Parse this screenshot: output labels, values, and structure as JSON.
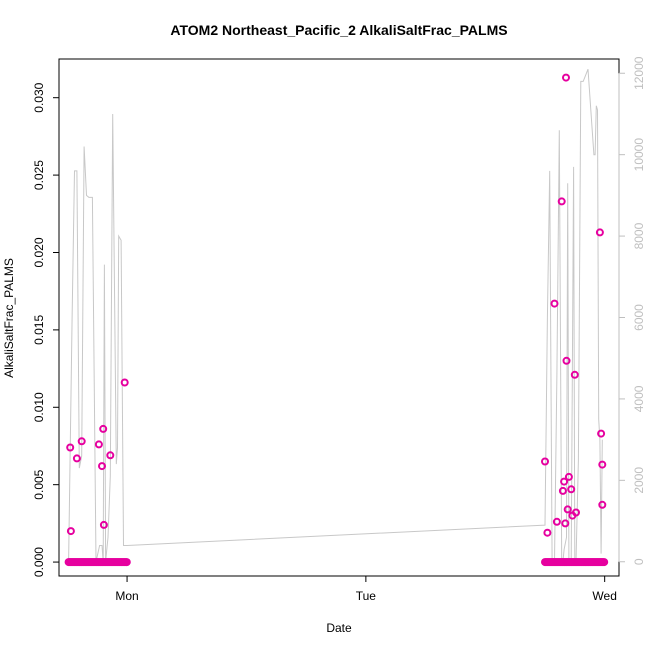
{
  "chart_data": {
    "type": "scatter",
    "title": "ATOM2 Northeast_Pacific_2 AlkaliSaltFrac_PALMS",
    "xlabel": "Date",
    "ylabel": "AlkaliSaltFrac_PALMS",
    "x_ticks": [
      {
        "day": 1,
        "label": "Mon"
      },
      {
        "day": 2,
        "label": "Tue"
      },
      {
        "day": 3,
        "label": "Wed"
      }
    ],
    "xlim_days": [
      0.715,
      3.06
    ],
    "ylim": [
      -0.0009,
      0.0325
    ],
    "y_ticks": [
      "0.000",
      "0.005",
      "0.010",
      "0.015",
      "0.020",
      "0.025",
      "0.030"
    ],
    "y2_ticks": [
      "0",
      "2000",
      "4000",
      "6000",
      "8000",
      "10000",
      "12000"
    ],
    "y2lim": [
      -350,
      12350
    ],
    "grid": false,
    "legend": "none",
    "colors": {
      "points": "#e6009f",
      "secondary_line": "#c8c8c8",
      "axis2": "#bfbfbf"
    },
    "series": [
      {
        "marker": "circle",
        "x_days": [
          0.762,
          0.765,
          0.79,
          0.81,
          0.882,
          0.895,
          0.9,
          0.903,
          0.93,
          0.99
        ],
        "values": [
          0.0074,
          0.002,
          0.0067,
          0.0078,
          0.0076,
          0.0062,
          0.0086,
          0.0024,
          0.0069,
          0.0116
        ],
        "zero_run_x_days": [
          0.755,
          1.0
        ]
      },
      {
        "marker": "circle",
        "x_days": [
          2.75,
          2.76,
          2.79,
          2.8,
          2.82,
          2.825,
          2.83,
          2.835,
          2.838,
          2.84,
          2.845,
          2.85,
          2.86,
          2.865,
          2.875,
          2.88,
          2.98,
          2.985,
          2.99,
          2.99
        ],
        "values": [
          0.0065,
          0.0019,
          0.0167,
          0.0026,
          0.0233,
          0.0046,
          0.0052,
          0.0025,
          0.0313,
          0.013,
          0.0034,
          0.0055,
          0.0047,
          0.003,
          0.0121,
          0.0032,
          0.0213,
          0.0083,
          0.0063,
          0.0037
        ],
        "zero_run_x_days": [
          2.75,
          3.0
        ]
      },
      {
        "style": "line",
        "axis": "secondary",
        "x_days": [
          0.755,
          0.77,
          0.78,
          0.79,
          0.8,
          0.81,
          0.82,
          0.83,
          0.84,
          0.855,
          0.87,
          0.885,
          0.895,
          0.9,
          0.905,
          0.91,
          0.92,
          0.93,
          0.94,
          0.955,
          0.96,
          0.965,
          0.975,
          0.985,
          1.0,
          2.75,
          2.76,
          2.77,
          2.78,
          2.79,
          2.8,
          2.81,
          2.82,
          2.825,
          2.83,
          2.84,
          2.845,
          2.85,
          2.86,
          2.87,
          2.875,
          2.88,
          2.89,
          2.9,
          2.91,
          2.93,
          2.955,
          2.96,
          2.965,
          2.97,
          2.975,
          2.98,
          2.985,
          2.99
        ],
        "values": [
          0,
          6000,
          9600,
          9600,
          2300,
          2600,
          10200,
          9000,
          8950,
          8950,
          0,
          400,
          400,
          0,
          7300,
          0,
          600,
          2100,
          11000,
          2400,
          2800,
          8000,
          7900,
          400,
          400,
          900,
          6000,
          9600,
          0,
          0,
          4600,
          10600,
          0,
          0,
          300,
          600,
          9300,
          0,
          0,
          9700,
          0,
          0,
          2500,
          11800,
          11800,
          12100,
          10000,
          10000,
          11200,
          11100,
          3500,
          3000,
          200,
          3000
        ]
      }
    ]
  }
}
